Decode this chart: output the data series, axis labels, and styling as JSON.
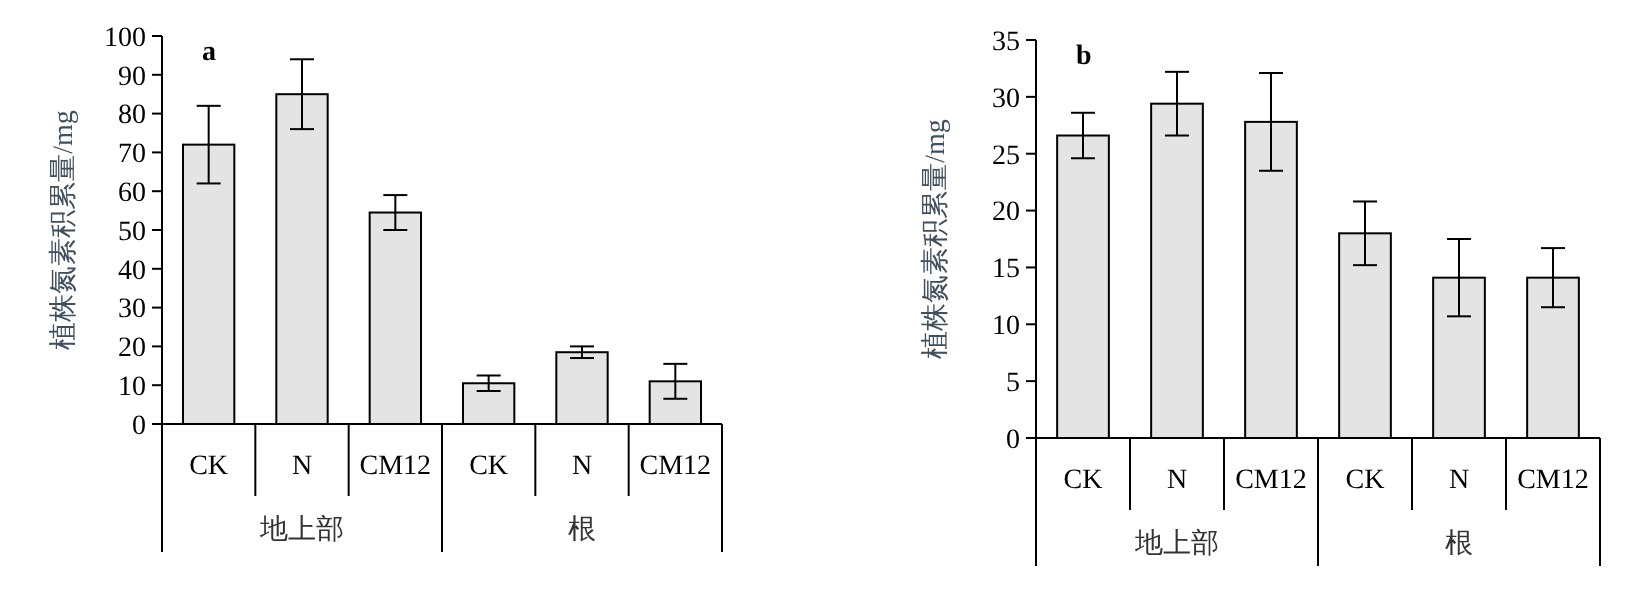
{
  "chart_data": [
    {
      "type": "bar",
      "title": "a",
      "ylabel": "植株氮素积累量/mg",
      "categories": [
        "CK",
        "N",
        "CM12",
        "CK",
        "N",
        "CM12"
      ],
      "values": [
        72,
        85,
        54.5,
        10.5,
        18.5,
        11
      ],
      "errors": [
        10,
        9,
        4.5,
        2,
        1.5,
        4.5
      ],
      "color": "#e4e4e4",
      "ylim": [
        0,
        100
      ],
      "yticks": [
        0,
        10,
        20,
        30,
        40,
        50,
        60,
        70,
        80,
        90,
        100
      ],
      "annotations": [
        "地上部",
        "根"
      ]
    },
    {
      "type": "bar",
      "title": "b",
      "ylabel": "植株氮素积累量/mg",
      "categories": [
        "CK",
        "N",
        "CM12",
        "CK",
        "N",
        "CM12"
      ],
      "values": [
        26.6,
        29.4,
        27.8,
        18,
        14.1,
        14.1
      ],
      "errors": [
        2,
        2.8,
        4.3,
        2.8,
        3.4,
        2.6
      ],
      "color": "#e4e4e4",
      "ylim": [
        0,
        35
      ],
      "yticks": [
        0,
        5,
        10,
        15,
        20,
        25,
        30,
        35
      ],
      "annotations": [
        "地上部",
        "根"
      ]
    }
  ]
}
